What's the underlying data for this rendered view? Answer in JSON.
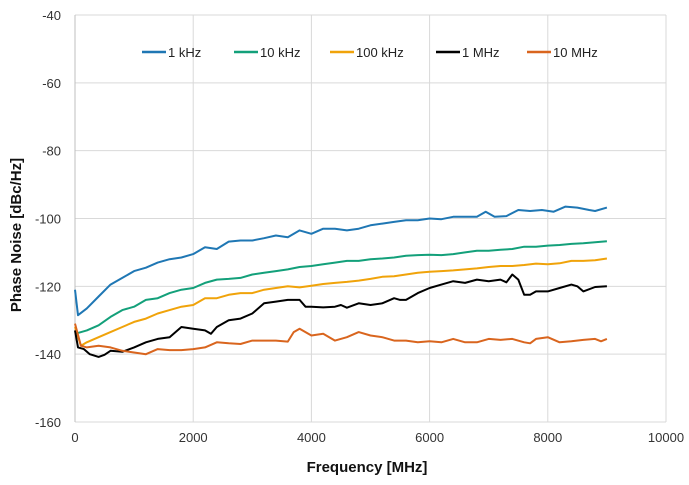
{
  "chart_data": {
    "type": "line",
    "title": "",
    "xlabel": "Frequency [MHz]",
    "ylabel": "Phase Noise [dBc/Hz]",
    "xlim": [
      0,
      10000
    ],
    "ylim": [
      -160,
      -40
    ],
    "x_ticks": [
      0,
      2000,
      4000,
      6000,
      8000,
      10000
    ],
    "y_ticks": [
      -160,
      -140,
      -120,
      -100,
      -80,
      -60,
      -40
    ],
    "grid": "horizontal and vertical major gridlines",
    "legend_position": "top",
    "series": [
      {
        "name": "1 kHz",
        "color": "#1f77b4",
        "points": [
          [
            0,
            -121
          ],
          [
            50,
            -128.5
          ],
          [
            200,
            -126.5
          ],
          [
            400,
            -123
          ],
          [
            600,
            -119.5
          ],
          [
            800,
            -117.5
          ],
          [
            1000,
            -115.5
          ],
          [
            1200,
            -114.5
          ],
          [
            1400,
            -113
          ],
          [
            1600,
            -112
          ],
          [
            1800,
            -111.5
          ],
          [
            2000,
            -110.5
          ],
          [
            2200,
            -108.5
          ],
          [
            2400,
            -109
          ],
          [
            2600,
            -106.8
          ],
          [
            2800,
            -106.5
          ],
          [
            3000,
            -106.5
          ],
          [
            3200,
            -105.8
          ],
          [
            3400,
            -105
          ],
          [
            3600,
            -105.5
          ],
          [
            3800,
            -103.5
          ],
          [
            4000,
            -104.5
          ],
          [
            4200,
            -103
          ],
          [
            4400,
            -103
          ],
          [
            4600,
            -103.5
          ],
          [
            4800,
            -103
          ],
          [
            5000,
            -102
          ],
          [
            5200,
            -101.5
          ],
          [
            5400,
            -101
          ],
          [
            5600,
            -100.5
          ],
          [
            5800,
            -100.5
          ],
          [
            6000,
            -100
          ],
          [
            6200,
            -100.2
          ],
          [
            6400,
            -99.5
          ],
          [
            6600,
            -99.5
          ],
          [
            6800,
            -99.5
          ],
          [
            6950,
            -98
          ],
          [
            7100,
            -99.5
          ],
          [
            7300,
            -99.3
          ],
          [
            7500,
            -97.5
          ],
          [
            7700,
            -97.8
          ],
          [
            7900,
            -97.5
          ],
          [
            8100,
            -98
          ],
          [
            8300,
            -96.5
          ],
          [
            8500,
            -96.8
          ],
          [
            8700,
            -97.5
          ],
          [
            8800,
            -97.8
          ],
          [
            9000,
            -96.8
          ]
        ]
      },
      {
        "name": "10 kHz",
        "color": "#13a07a",
        "points": [
          [
            0,
            -134
          ],
          [
            200,
            -133
          ],
          [
            400,
            -131.5
          ],
          [
            600,
            -129
          ],
          [
            800,
            -127
          ],
          [
            1000,
            -126
          ],
          [
            1200,
            -124
          ],
          [
            1400,
            -123.5
          ],
          [
            1600,
            -122
          ],
          [
            1800,
            -121
          ],
          [
            2000,
            -120.5
          ],
          [
            2200,
            -119
          ],
          [
            2400,
            -118
          ],
          [
            2600,
            -117.8
          ],
          [
            2800,
            -117.5
          ],
          [
            3000,
            -116.5
          ],
          [
            3200,
            -116
          ],
          [
            3400,
            -115.5
          ],
          [
            3600,
            -115
          ],
          [
            3800,
            -114.3
          ],
          [
            4000,
            -114
          ],
          [
            4200,
            -113.5
          ],
          [
            4400,
            -113
          ],
          [
            4600,
            -112.5
          ],
          [
            4800,
            -112.5
          ],
          [
            5000,
            -112
          ],
          [
            5200,
            -111.8
          ],
          [
            5400,
            -111.5
          ],
          [
            5600,
            -111
          ],
          [
            5800,
            -110.8
          ],
          [
            6000,
            -110.7
          ],
          [
            6200,
            -110.8
          ],
          [
            6400,
            -110.5
          ],
          [
            6600,
            -110
          ],
          [
            6800,
            -109.5
          ],
          [
            7000,
            -109.5
          ],
          [
            7200,
            -109.2
          ],
          [
            7400,
            -109
          ],
          [
            7600,
            -108.3
          ],
          [
            7800,
            -108.3
          ],
          [
            8000,
            -108
          ],
          [
            8200,
            -107.8
          ],
          [
            8400,
            -107.5
          ],
          [
            8600,
            -107.3
          ],
          [
            8800,
            -107
          ],
          [
            9000,
            -106.7
          ]
        ]
      },
      {
        "name": "100 kHz",
        "color": "#f0a30a",
        "points": [
          [
            0,
            -132
          ],
          [
            100,
            -137.5
          ],
          [
            200,
            -136.5
          ],
          [
            400,
            -135
          ],
          [
            600,
            -133.5
          ],
          [
            800,
            -132
          ],
          [
            1000,
            -130.5
          ],
          [
            1200,
            -129.5
          ],
          [
            1400,
            -128
          ],
          [
            1600,
            -127
          ],
          [
            1800,
            -126
          ],
          [
            2000,
            -125.5
          ],
          [
            2200,
            -123.5
          ],
          [
            2400,
            -123.5
          ],
          [
            2600,
            -122.5
          ],
          [
            2800,
            -122
          ],
          [
            3000,
            -122
          ],
          [
            3200,
            -121
          ],
          [
            3400,
            -120.5
          ],
          [
            3600,
            -120
          ],
          [
            3800,
            -120.3
          ],
          [
            4000,
            -119.8
          ],
          [
            4200,
            -119.3
          ],
          [
            4400,
            -119
          ],
          [
            4600,
            -118.7
          ],
          [
            4800,
            -118.3
          ],
          [
            5000,
            -117.8
          ],
          [
            5200,
            -117.2
          ],
          [
            5400,
            -117
          ],
          [
            5600,
            -116.5
          ],
          [
            5800,
            -116
          ],
          [
            6000,
            -115.7
          ],
          [
            6200,
            -115.5
          ],
          [
            6400,
            -115.3
          ],
          [
            6600,
            -115
          ],
          [
            6800,
            -114.7
          ],
          [
            7000,
            -114.3
          ],
          [
            7200,
            -114
          ],
          [
            7400,
            -114
          ],
          [
            7600,
            -113.7
          ],
          [
            7800,
            -113.3
          ],
          [
            8000,
            -113.5
          ],
          [
            8200,
            -113.2
          ],
          [
            8400,
            -112.5
          ],
          [
            8600,
            -112.5
          ],
          [
            8800,
            -112.3
          ],
          [
            9000,
            -111.8
          ]
        ]
      },
      {
        "name": "1 MHz",
        "color": "#000000",
        "points": [
          [
            0,
            -133
          ],
          [
            50,
            -138
          ],
          [
            150,
            -138.5
          ],
          [
            250,
            -140
          ],
          [
            400,
            -140.8
          ],
          [
            500,
            -140.2
          ],
          [
            600,
            -139
          ],
          [
            800,
            -139.3
          ],
          [
            1000,
            -138
          ],
          [
            1200,
            -136.5
          ],
          [
            1400,
            -135.5
          ],
          [
            1600,
            -135
          ],
          [
            1800,
            -132
          ],
          [
            2000,
            -132.5
          ],
          [
            2200,
            -133
          ],
          [
            2300,
            -134
          ],
          [
            2400,
            -132
          ],
          [
            2600,
            -130
          ],
          [
            2800,
            -129.5
          ],
          [
            3000,
            -128
          ],
          [
            3200,
            -125
          ],
          [
            3400,
            -124.5
          ],
          [
            3600,
            -124
          ],
          [
            3800,
            -124
          ],
          [
            3900,
            -126
          ],
          [
            4000,
            -126
          ],
          [
            4200,
            -126.2
          ],
          [
            4400,
            -126
          ],
          [
            4500,
            -125.5
          ],
          [
            4600,
            -126.3
          ],
          [
            4800,
            -125
          ],
          [
            5000,
            -125.5
          ],
          [
            5200,
            -125
          ],
          [
            5400,
            -123.5
          ],
          [
            5500,
            -124
          ],
          [
            5600,
            -124
          ],
          [
            5800,
            -122
          ],
          [
            6000,
            -120.5
          ],
          [
            6200,
            -119.5
          ],
          [
            6400,
            -118.5
          ],
          [
            6600,
            -119
          ],
          [
            6800,
            -118
          ],
          [
            7000,
            -118.5
          ],
          [
            7200,
            -118
          ],
          [
            7300,
            -118.8
          ],
          [
            7400,
            -116.5
          ],
          [
            7500,
            -118
          ],
          [
            7600,
            -122.5
          ],
          [
            7700,
            -122.5
          ],
          [
            7800,
            -121.5
          ],
          [
            8000,
            -121.5
          ],
          [
            8200,
            -120.5
          ],
          [
            8400,
            -119.5
          ],
          [
            8500,
            -120
          ],
          [
            8600,
            -121.5
          ],
          [
            8800,
            -120.2
          ],
          [
            9000,
            -120
          ]
        ]
      },
      {
        "name": "10 MHz",
        "color": "#d9651e",
        "points": [
          [
            0,
            -131
          ],
          [
            100,
            -137.5
          ],
          [
            200,
            -138
          ],
          [
            400,
            -137.5
          ],
          [
            600,
            -138
          ],
          [
            800,
            -139
          ],
          [
            1000,
            -139.5
          ],
          [
            1200,
            -140
          ],
          [
            1400,
            -138.5
          ],
          [
            1600,
            -138.8
          ],
          [
            1800,
            -138.8
          ],
          [
            2000,
            -138.5
          ],
          [
            2200,
            -138
          ],
          [
            2400,
            -136.5
          ],
          [
            2600,
            -136.8
          ],
          [
            2800,
            -137
          ],
          [
            3000,
            -136
          ],
          [
            3200,
            -136
          ],
          [
            3400,
            -136
          ],
          [
            3600,
            -136.3
          ],
          [
            3700,
            -133.5
          ],
          [
            3800,
            -132.5
          ],
          [
            4000,
            -134.5
          ],
          [
            4200,
            -134
          ],
          [
            4400,
            -136
          ],
          [
            4600,
            -135
          ],
          [
            4800,
            -133.5
          ],
          [
            5000,
            -134.5
          ],
          [
            5200,
            -135
          ],
          [
            5400,
            -136
          ],
          [
            5600,
            -136
          ],
          [
            5800,
            -136.5
          ],
          [
            6000,
            -136.2
          ],
          [
            6200,
            -136.5
          ],
          [
            6400,
            -135.5
          ],
          [
            6600,
            -136.5
          ],
          [
            6800,
            -136.5
          ],
          [
            7000,
            -135.5
          ],
          [
            7200,
            -135.8
          ],
          [
            7400,
            -135.5
          ],
          [
            7600,
            -136.5
          ],
          [
            7700,
            -136.8
          ],
          [
            7800,
            -135.5
          ],
          [
            8000,
            -135
          ],
          [
            8200,
            -136.5
          ],
          [
            8400,
            -136.2
          ],
          [
            8600,
            -135.8
          ],
          [
            8800,
            -135.5
          ],
          [
            8900,
            -136.2
          ],
          [
            9000,
            -135.5
          ]
        ]
      }
    ]
  }
}
